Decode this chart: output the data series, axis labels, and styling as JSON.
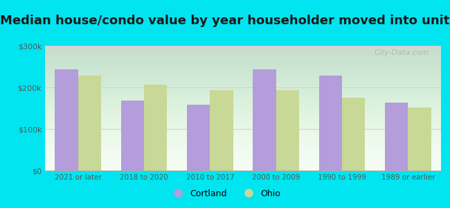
{
  "title": "Median house/condo value by year householder moved into unit",
  "categories": [
    "2021 or later",
    "2018 to 2020",
    "2010 to 2017",
    "2000 to 2009",
    "1990 to 1999",
    "1989 or earlier"
  ],
  "cortland_values": [
    243000,
    168000,
    158000,
    244000,
    228000,
    163000
  ],
  "ohio_values": [
    228000,
    207000,
    193000,
    193000,
    175000,
    152000
  ],
  "cortland_color": "#b39ddb",
  "ohio_color": "#c8d896",
  "background_outer": "#00e5f0",
  "ylim": [
    0,
    300000
  ],
  "yticks": [
    0,
    100000,
    200000,
    300000
  ],
  "ytick_labels": [
    "$0",
    "$100k",
    "$200k",
    "$300k"
  ],
  "title_fontsize": 13,
  "bar_width": 0.35,
  "legend_labels": [
    "Cortland",
    "Ohio"
  ],
  "watermark": "City-Data.com"
}
